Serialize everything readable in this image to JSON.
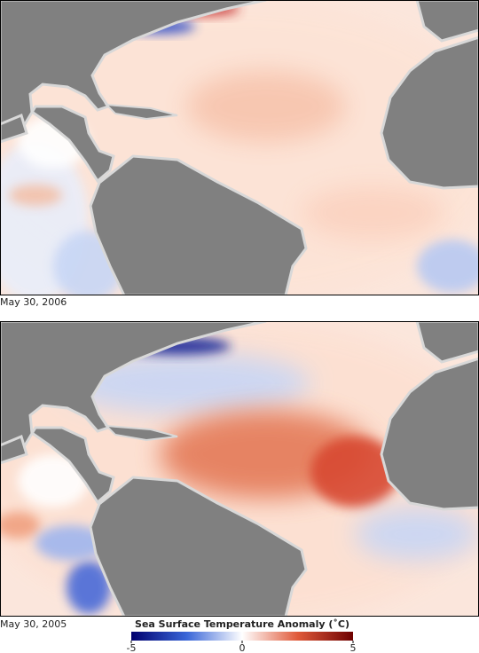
{
  "panels": [
    {
      "caption": "May 30, 2006"
    },
    {
      "caption": "May 30, 2005"
    }
  ],
  "colorbar": {
    "title": "Sea Surface Temperature Anomaly (˚C)",
    "range": [
      -5,
      5
    ],
    "ticks": [
      -5,
      0,
      5
    ],
    "colors": [
      "#00006e",
      "#3a66d8",
      "#ffffff",
      "#e05a3a",
      "#6e0000"
    ]
  }
}
